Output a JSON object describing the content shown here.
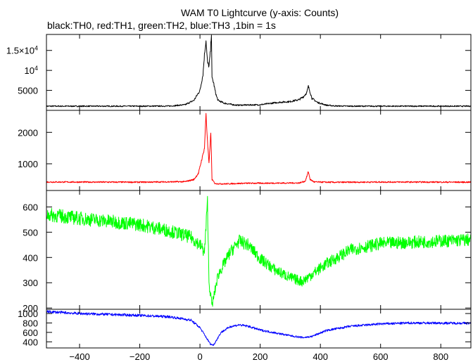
{
  "title": "WAM T0 Lightcurve (y-axis: Counts)",
  "subtitle": "black:TH0, red:TH1, green:TH2, blue:TH3 ,1bin = 1s",
  "chart_data": {
    "type": "line",
    "title": "WAM T0 Lightcurve (y-axis: Counts)",
    "subtitle": "black:TH0, red:TH1, green:TH2, blue:TH3 ,1bin = 1s",
    "xlim": [
      -510,
      900
    ],
    "x_ticks": [
      -400,
      -200,
      0,
      200,
      400,
      600,
      800
    ],
    "x_tick_labels": [
      "−400",
      "−200",
      "0",
      "200",
      "400",
      "600",
      "800"
    ],
    "panels": [
      {
        "name": "TH0",
        "color": "#000000",
        "ylim": [
          0,
          19000
        ],
        "y_ticks": [
          5000,
          10000,
          15000
        ],
        "y_tick_labels": [
          {
            "base": "5000",
            "exp": ""
          },
          {
            "base": "10",
            "exp": "4"
          },
          {
            "base": "1.5×10",
            "exp": "4"
          }
        ],
        "noise": 150,
        "points": [
          [
            -510,
            1050
          ],
          [
            -200,
            1050
          ],
          [
            -100,
            1080
          ],
          [
            -50,
            1400
          ],
          [
            -20,
            2500
          ],
          [
            0,
            5000
          ],
          [
            10,
            9000
          ],
          [
            15,
            14000
          ],
          [
            20,
            17500
          ],
          [
            25,
            12000
          ],
          [
            30,
            11000
          ],
          [
            35,
            15000
          ],
          [
            38,
            19500
          ],
          [
            40,
            8000
          ],
          [
            45,
            7000
          ],
          [
            50,
            5000
          ],
          [
            55,
            3500
          ],
          [
            60,
            2500
          ],
          [
            80,
            1800
          ],
          [
            120,
            1300
          ],
          [
            160,
            1350
          ],
          [
            200,
            1400
          ],
          [
            220,
            1600
          ],
          [
            260,
            2000
          ],
          [
            300,
            2200
          ],
          [
            330,
            2700
          ],
          [
            345,
            3500
          ],
          [
            355,
            4500
          ],
          [
            360,
            6000
          ],
          [
            365,
            4800
          ],
          [
            372,
            3000
          ],
          [
            390,
            2000
          ],
          [
            420,
            1300
          ],
          [
            450,
            1100
          ],
          [
            500,
            1050
          ],
          [
            900,
            1050
          ]
        ]
      },
      {
        "name": "TH1",
        "color": "#ff0000",
        "ylim": [
          150,
          2700
        ],
        "y_ticks": [
          1000,
          2000
        ],
        "y_tick_labels": [
          {
            "base": "1000",
            "exp": ""
          },
          {
            "base": "2000",
            "exp": ""
          }
        ],
        "noise": 22,
        "points": [
          [
            -510,
            420
          ],
          [
            -200,
            415
          ],
          [
            -50,
            430
          ],
          [
            -20,
            500
          ],
          [
            -5,
            700
          ],
          [
            5,
            1100
          ],
          [
            15,
            1500
          ],
          [
            20,
            2600
          ],
          [
            25,
            1700
          ],
          [
            30,
            1000
          ],
          [
            36,
            2000
          ],
          [
            40,
            500
          ],
          [
            50,
            370
          ],
          [
            80,
            360
          ],
          [
            150,
            380
          ],
          [
            250,
            385
          ],
          [
            330,
            390
          ],
          [
            350,
            450
          ],
          [
            360,
            750
          ],
          [
            366,
            500
          ],
          [
            380,
            420
          ],
          [
            450,
            410
          ],
          [
            600,
            420
          ],
          [
            900,
            415
          ]
        ]
      },
      {
        "name": "TH2",
        "color": "#00ff00",
        "ylim": [
          195,
          665
        ],
        "y_ticks": [
          200,
          300,
          400,
          500,
          600
        ],
        "y_tick_labels": [
          {
            "base": "200",
            "exp": ""
          },
          {
            "base": "300",
            "exp": ""
          },
          {
            "base": "400",
            "exp": ""
          },
          {
            "base": "500",
            "exp": ""
          },
          {
            "base": "600",
            "exp": ""
          }
        ],
        "noise": 28,
        "points": [
          [
            -510,
            570
          ],
          [
            -400,
            555
          ],
          [
            -200,
            530
          ],
          [
            -100,
            505
          ],
          [
            -30,
            480
          ],
          [
            0,
            450
          ],
          [
            15,
            420
          ],
          [
            25,
            620
          ],
          [
            30,
            300
          ],
          [
            40,
            210
          ],
          [
            60,
            330
          ],
          [
            100,
            420
          ],
          [
            130,
            465
          ],
          [
            160,
            450
          ],
          [
            200,
            395
          ],
          [
            250,
            350
          ],
          [
            300,
            320
          ],
          [
            340,
            305
          ],
          [
            380,
            340
          ],
          [
            420,
            375
          ],
          [
            500,
            430
          ],
          [
            600,
            455
          ],
          [
            700,
            460
          ],
          [
            900,
            470
          ]
        ]
      },
      {
        "name": "TH3",
        "color": "#0000ff",
        "ylim": [
          270,
          1090
        ],
        "y_ticks": [
          400,
          600,
          800,
          1000
        ],
        "y_tick_labels": [
          {
            "base": "400",
            "exp": ""
          },
          {
            "base": "600",
            "exp": ""
          },
          {
            "base": "800",
            "exp": ""
          },
          {
            "base": "1000",
            "exp": ""
          }
        ],
        "noise": 28,
        "points": [
          [
            -510,
            1040
          ],
          [
            -400,
            1000
          ],
          [
            -200,
            960
          ],
          [
            -100,
            930
          ],
          [
            -30,
            860
          ],
          [
            0,
            700
          ],
          [
            20,
            500
          ],
          [
            35,
            350
          ],
          [
            45,
            330
          ],
          [
            70,
            600
          ],
          [
            100,
            720
          ],
          [
            130,
            760
          ],
          [
            160,
            730
          ],
          [
            200,
            650
          ],
          [
            250,
            590
          ],
          [
            300,
            530
          ],
          [
            340,
            490
          ],
          [
            370,
            510
          ],
          [
            420,
            640
          ],
          [
            500,
            730
          ],
          [
            600,
            780
          ],
          [
            700,
            800
          ],
          [
            900,
            795
          ]
        ]
      }
    ]
  }
}
